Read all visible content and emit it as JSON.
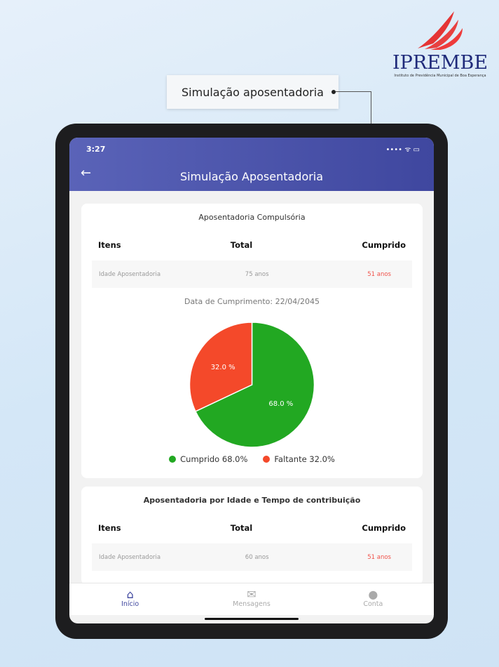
{
  "logo": {
    "brand": "IPREMBE",
    "subtitle": "Instituto de Previdência Municipal de Boa Esperança"
  },
  "callout": "Simulação aposentadoria",
  "status": {
    "time": "3:27",
    "icons": "•••• wifi battery"
  },
  "appbar": {
    "title": "Simulação Aposentadoria",
    "back_icon": "arrow-left-icon"
  },
  "card1": {
    "title": "Aposentadoria Compulsória",
    "headers": [
      "Itens",
      "Total",
      "Cumprido"
    ],
    "row": [
      "Idade Aposentadoria",
      "75 anos",
      "51 anos"
    ],
    "date": "Data de Cumprimento: 22/04/2045"
  },
  "chart_data": {
    "type": "pie",
    "slices": [
      {
        "label": "Cumprido",
        "value": 68.0,
        "color": "#22a822",
        "text": "68.0 %"
      },
      {
        "label": "Faltante",
        "value": 32.0,
        "color": "#f4492a",
        "text": "32.0 %"
      }
    ],
    "legend": [
      "Cumprido  68.0%",
      "Faltante  32.0%"
    ]
  },
  "card2": {
    "title": "Aposentadoria por Idade e Tempo de contribuição",
    "headers": [
      "Itens",
      "Total",
      "Cumprido"
    ],
    "row": [
      "Idade Aposentadoria",
      "60 anos",
      "51 anos"
    ]
  },
  "nav": [
    {
      "label": "Início",
      "icon": "home-icon"
    },
    {
      "label": "Mensagens",
      "icon": "mail-icon"
    },
    {
      "label": "Conta",
      "icon": "person-icon"
    }
  ]
}
